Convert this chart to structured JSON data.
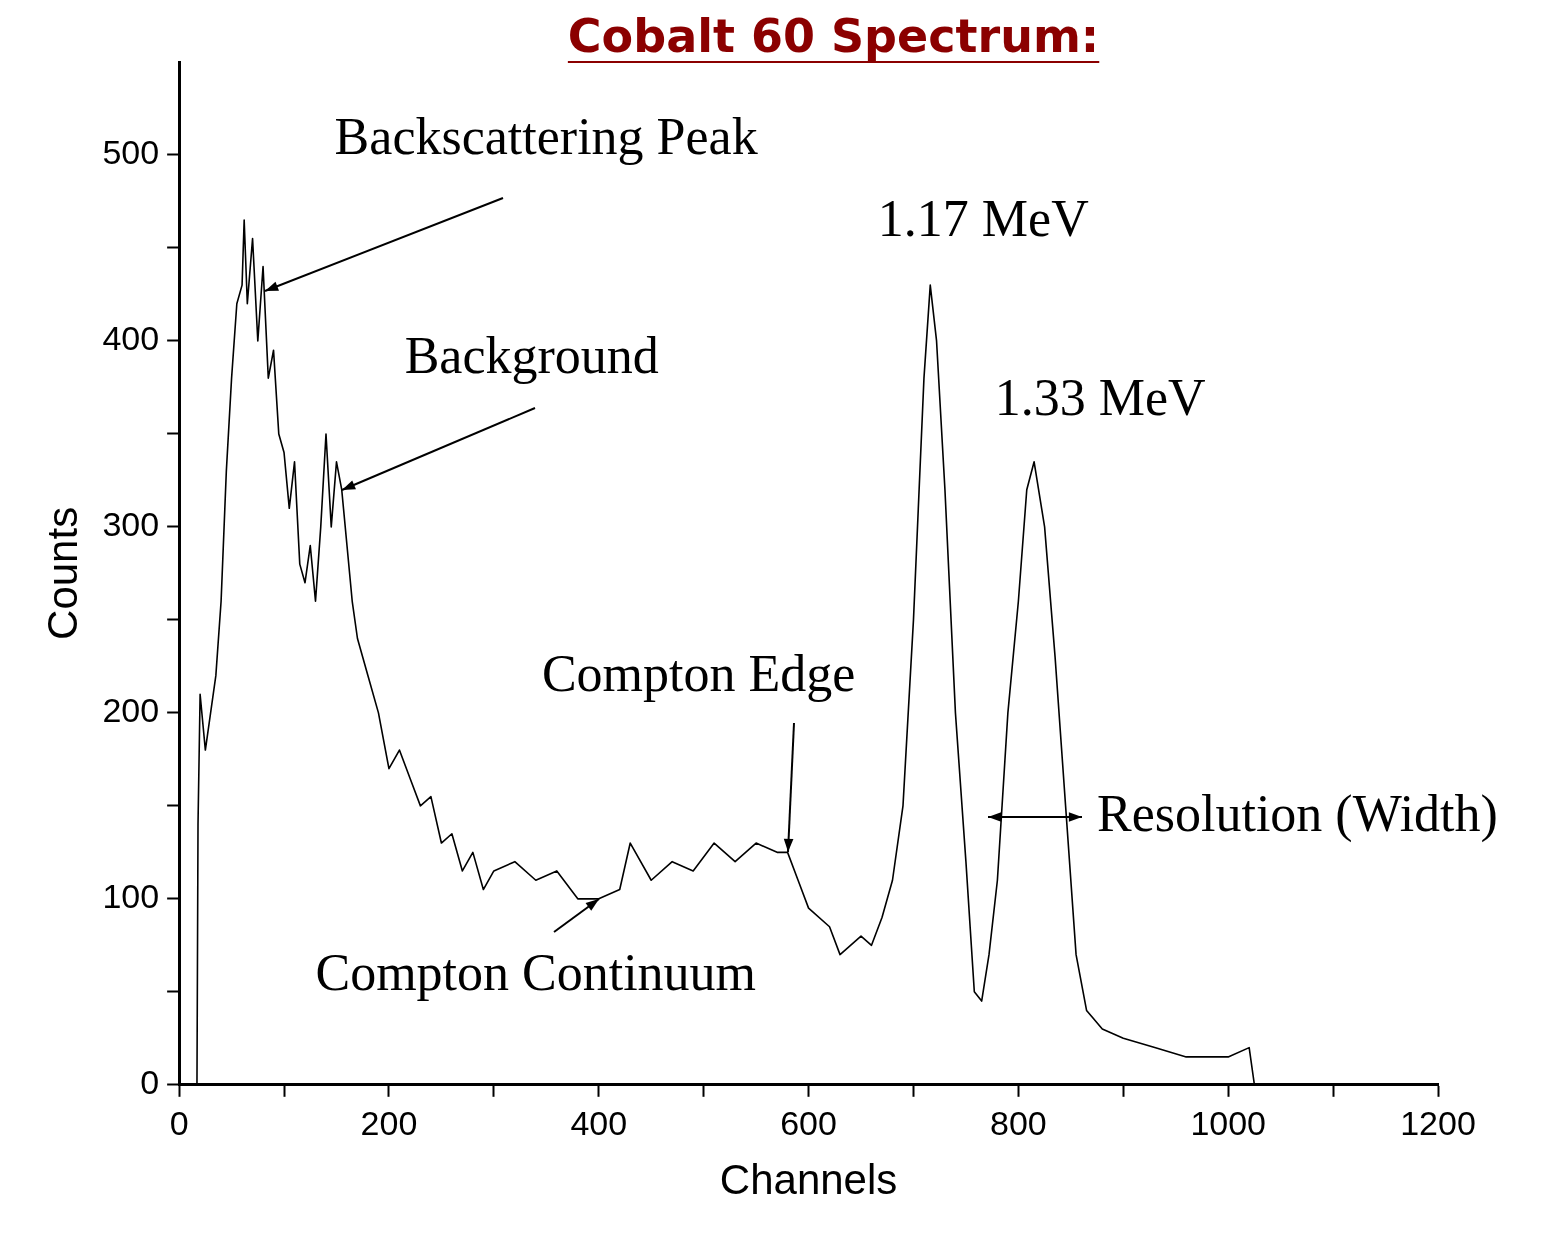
{
  "chart_data": {
    "type": "line",
    "title": "Cobalt 60 Spectrum:",
    "xlabel": "Channels",
    "ylabel": "Counts",
    "x": [
      17,
      18,
      20,
      25,
      30,
      35,
      40,
      45,
      50,
      55,
      60,
      62,
      65,
      70,
      75,
      80,
      85,
      90,
      95,
      100,
      105,
      110,
      115,
      120,
      125,
      130,
      135,
      140,
      145,
      150,
      155,
      160,
      165,
      170,
      180,
      190,
      200,
      210,
      220,
      230,
      240,
      250,
      260,
      270,
      280,
      290,
      300,
      320,
      340,
      360,
      380,
      400,
      420,
      430,
      450,
      470,
      490,
      510,
      530,
      550,
      570,
      580,
      590,
      600,
      620,
      630,
      650,
      660,
      670,
      680,
      690,
      700,
      710,
      716,
      722,
      730,
      740,
      750,
      758,
      765,
      772,
      780,
      790,
      800,
      808,
      815,
      825,
      835,
      845,
      855,
      865,
      880,
      900,
      930,
      960,
      1000,
      1020,
      1025
    ],
    "series": [
      {
        "color": "#000000",
        "values": [
          0,
          140,
          210,
          180,
          200,
          220,
          260,
          330,
          380,
          420,
          430,
          465,
          420,
          455,
          400,
          440,
          380,
          395,
          350,
          340,
          310,
          335,
          280,
          270,
          290,
          260,
          300,
          350,
          300,
          335,
          320,
          290,
          260,
          240,
          220,
          200,
          170,
          180,
          165,
          150,
          155,
          130,
          135,
          115,
          125,
          105,
          115,
          120,
          110,
          115,
          100,
          100,
          105,
          130,
          110,
          120,
          115,
          130,
          120,
          130,
          125,
          125,
          110,
          95,
          85,
          70,
          80,
          75,
          90,
          110,
          150,
          250,
          380,
          430,
          400,
          320,
          200,
          120,
          50,
          45,
          70,
          110,
          200,
          260,
          320,
          335,
          300,
          230,
          150,
          70,
          40,
          30,
          25,
          20,
          15,
          15,
          20,
          0
        ]
      }
    ],
    "xlim": [
      0,
      1200
    ],
    "ylim": [
      0,
      550
    ],
    "xticks": [
      0,
      {
        "value": 100,
        "label": null
      },
      200,
      {
        "value": 300,
        "label": null
      },
      400,
      {
        "value": 500,
        "label": null
      },
      600,
      {
        "value": 700,
        "label": null
      },
      800,
      {
        "value": 900,
        "label": null
      },
      1000,
      {
        "value": 1100,
        "label": null
      },
      1200
    ],
    "yticks": [
      0,
      {
        "value": 50,
        "label": null
      },
      100,
      {
        "value": 150,
        "label": null
      },
      200,
      {
        "value": 250,
        "label": null
      },
      300,
      {
        "value": 350,
        "label": null
      },
      400,
      {
        "value": 450,
        "label": null
      },
      500
    ],
    "annotations": [
      {
        "text": "Backscattering Peak",
        "x": 82,
        "y": 427
      },
      {
        "text": "Background",
        "x": 155,
        "y": 320
      },
      {
        "text": "Compton Edge",
        "x": 580,
        "y": 125
      },
      {
        "text": "Compton Continuum",
        "x": 400,
        "y": 100
      },
      {
        "text": "1.17 MeV",
        "x": 716,
        "y": 430
      },
      {
        "text": "1.33 MeV",
        "x": 815,
        "y": 335
      },
      "Resolution (Width)"
    ],
    "grid": false,
    "legend": false,
    "marker": "none",
    "line_style": "solid"
  }
}
